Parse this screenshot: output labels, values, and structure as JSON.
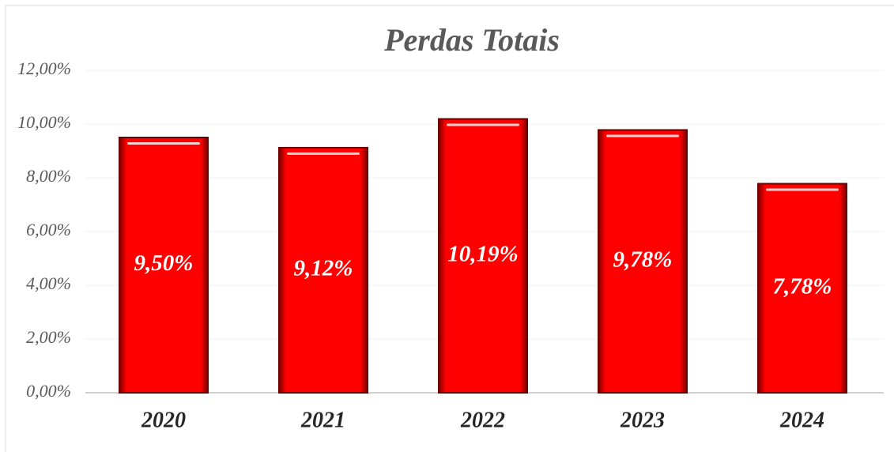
{
  "chart_data": {
    "type": "bar",
    "title": "Perdas Totais",
    "categories": [
      "2020",
      "2021",
      "2022",
      "2023",
      "2024"
    ],
    "values": [
      9.5,
      9.12,
      10.19,
      9.78,
      7.78
    ],
    "value_labels": [
      "9,50%",
      "9,12%",
      "10,19%",
      "9,78%",
      "7,78%"
    ],
    "color": "#ff0000",
    "ylim": [
      0,
      12
    ],
    "yticks": [
      {
        "value": 0,
        "label": "0,00%"
      },
      {
        "value": 2,
        "label": "2,00%"
      },
      {
        "value": 4,
        "label": "4,00%"
      },
      {
        "value": 6,
        "label": "6,00%"
      },
      {
        "value": 8,
        "label": "8,00%"
      },
      {
        "value": 10,
        "label": "10,00%"
      },
      {
        "value": 12,
        "label": "12,00%"
      }
    ],
    "grid": true
  }
}
